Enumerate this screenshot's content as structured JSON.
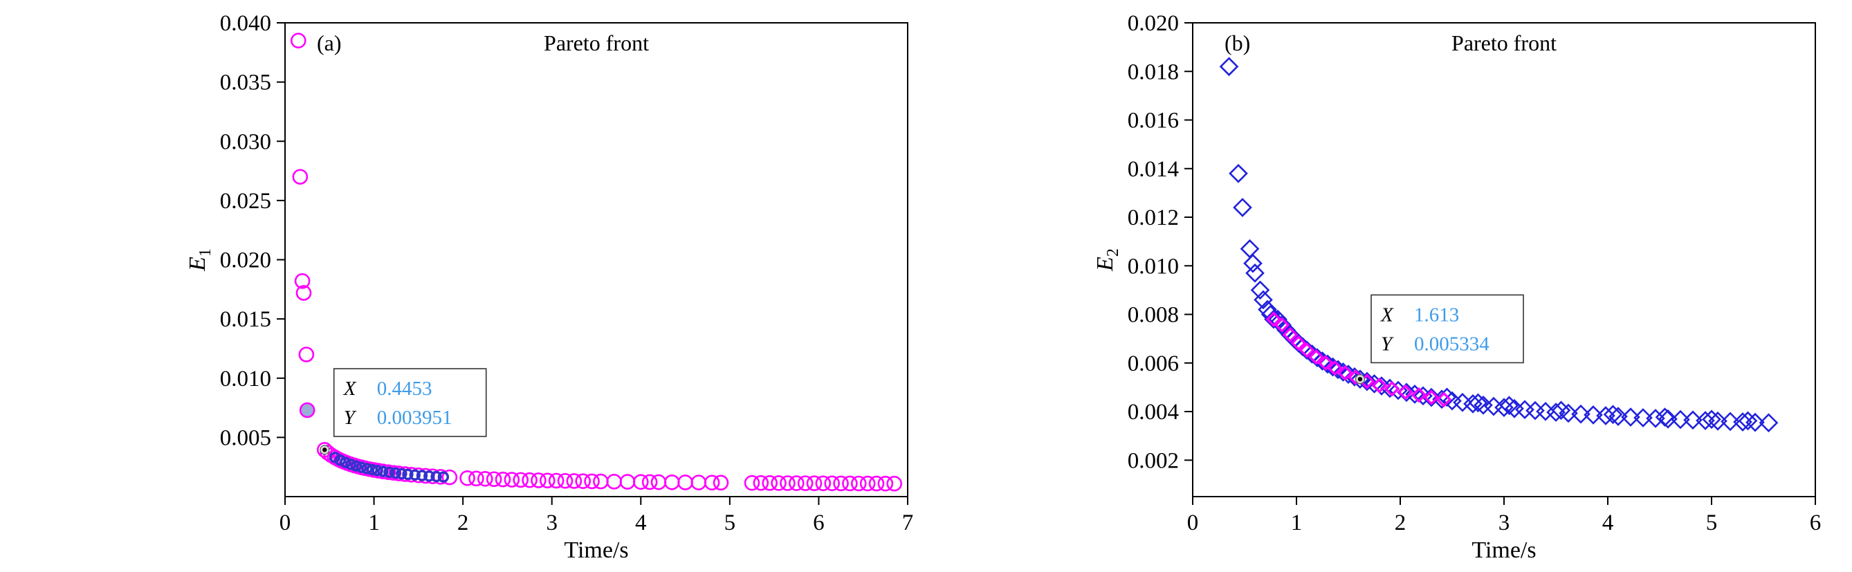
{
  "figure": {
    "background": "#ffffff",
    "frame_color": "#000000",
    "datatip_value_color": "#3D9BE9",
    "datatip_dot_fill": "#dcdcdc"
  },
  "chart_data": [
    {
      "type": "scatter",
      "panel_label": "(a)",
      "title": "Pareto front",
      "xlabel": "Time/s",
      "ylabel_main": "E",
      "ylabel_sub": "1",
      "xlim": [
        0,
        7
      ],
      "ylim": [
        0,
        0.04
      ],
      "grid": false,
      "xticks": [
        [
          0,
          "0"
        ],
        [
          1,
          "1"
        ],
        [
          2,
          "2"
        ],
        [
          3,
          "3"
        ],
        [
          4,
          "4"
        ],
        [
          5,
          "5"
        ],
        [
          6,
          "6"
        ],
        [
          7,
          "7"
        ]
      ],
      "yticks": [
        [
          0.005,
          "0.005"
        ],
        [
          0.01,
          "0.010"
        ],
        [
          0.015,
          "0.015"
        ],
        [
          0.02,
          "0.020"
        ],
        [
          0.025,
          "0.025"
        ],
        [
          0.03,
          "0.030"
        ],
        [
          0.035,
          "0.035"
        ],
        [
          0.04,
          "0.040"
        ]
      ],
      "series": [
        {
          "name": "pareto-points-E1",
          "marker": "circle",
          "color": "#FF00FF",
          "fill": "none",
          "size": 10,
          "stroke_width": 2.6,
          "points": [
            [
              0.15,
              0.0385
            ],
            [
              0.17,
              0.027
            ],
            [
              0.195,
              0.0182
            ],
            [
              0.21,
              0.0172
            ],
            [
              0.24,
              0.012
            ],
            [
              0.4453,
              0.003951
            ],
            [
              0.48,
              0.003713
            ],
            [
              0.52,
              0.003496
            ],
            [
              0.56,
              0.003311
            ],
            [
              0.6,
              0.00315
            ],
            [
              0.63,
              0.003043
            ],
            [
              0.66,
              0.002945
            ],
            [
              0.7,
              0.002829
            ],
            [
              0.74,
              0.002724
            ],
            [
              0.78,
              0.002631
            ],
            [
              0.82,
              0.002546
            ],
            [
              0.86,
              0.00247
            ],
            [
              0.9,
              0.0024
            ],
            [
              0.95,
              0.002321
            ],
            [
              1.0,
              0.00225
            ],
            [
              1.05,
              0.002186
            ],
            [
              1.1,
              0.002127
            ],
            [
              1.16,
              0.002064
            ],
            [
              1.22,
              0.002007
            ],
            [
              1.28,
              0.001955
            ],
            [
              1.35,
              0.0019
            ],
            [
              1.42,
              0.001851
            ],
            [
              1.5,
              0.0018
            ],
            [
              1.58,
              0.001754
            ],
            [
              1.66,
              0.001713
            ],
            [
              1.75,
              0.001671
            ],
            [
              1.85,
              0.00163
            ],
            [
              2.05,
              0.001559
            ],
            [
              2.15,
              0.001528
            ],
            [
              2.25,
              0.0015
            ],
            [
              2.35,
              0.001474
            ],
            [
              2.45,
              0.001451
            ],
            [
              2.55,
              0.001429
            ],
            [
              2.65,
              0.001409
            ],
            [
              2.75,
              0.001391
            ],
            [
              2.85,
              0.001374
            ],
            [
              2.95,
              0.001358
            ],
            [
              3.05,
              0.001343
            ],
            [
              3.15,
              0.001329
            ],
            [
              3.25,
              0.001315
            ],
            [
              3.35,
              0.001303
            ],
            [
              3.45,
              0.001291
            ],
            [
              3.55,
              0.00128
            ],
            [
              3.7,
              0.001265
            ],
            [
              3.85,
              0.001251
            ],
            [
              4.0,
              0.001238
            ],
            [
              4.1,
              0.001229
            ],
            [
              4.2,
              0.001221
            ],
            [
              4.35,
              0.00121
            ],
            [
              4.5,
              0.0012
            ],
            [
              4.65,
              0.00119
            ],
            [
              4.8,
              0.001181
            ],
            [
              4.9,
              0.001176
            ],
            [
              5.25,
              0.001157
            ],
            [
              5.35,
              0.001152
            ],
            [
              5.45,
              0.001148
            ],
            [
              5.55,
              0.001143
            ],
            [
              5.65,
              0.001139
            ],
            [
              5.75,
              0.001135
            ],
            [
              5.85,
              0.001131
            ],
            [
              5.95,
              0.001127
            ],
            [
              6.05,
              0.001123
            ],
            [
              6.15,
              0.00112
            ],
            [
              6.25,
              0.001116
            ],
            [
              6.35,
              0.001113
            ],
            [
              6.45,
              0.001109
            ],
            [
              6.55,
              0.001106
            ],
            [
              6.65,
              0.001103
            ],
            [
              6.75,
              0.0011
            ],
            [
              6.85,
              0.001097
            ]
          ]
        },
        {
          "name": "common-solutions-overlay",
          "marker": "circle",
          "color": "#3333CC",
          "fill": "none",
          "size": 6.5,
          "stroke_width": 3.4,
          "points": [
            [
              0.56,
              0.003311
            ],
            [
              0.62,
              0.003077
            ],
            [
              0.68,
              0.002885
            ],
            [
              0.74,
              0.002724
            ],
            [
              0.8,
              0.002588
            ],
            [
              0.86,
              0.00247
            ],
            [
              0.92,
              0.002367
            ],
            [
              0.98,
              0.002278
            ],
            [
              1.04,
              0.002198
            ],
            [
              1.1,
              0.002127
            ],
            [
              1.17,
              0.002054
            ],
            [
              1.24,
              0.001989
            ],
            [
              1.31,
              0.001931
            ],
            [
              1.38,
              0.001878
            ],
            [
              1.46,
              0.001825
            ],
            [
              1.54,
              0.001777
            ],
            [
              1.62,
              0.001733
            ],
            [
              1.7,
              0.001694
            ],
            [
              1.78,
              0.001658
            ]
          ]
        },
        {
          "name": "highlighted-filled-point",
          "marker": "circle",
          "color": "#FF00FF",
          "fill": "#9aaEd8",
          "size": 10,
          "stroke_width": 2.6,
          "points": [
            [
              0.25,
              0.0073
            ]
          ]
        }
      ],
      "annotation": {
        "labels": [
          "X",
          "Y"
        ],
        "values": [
          "0.4453",
          "0.003951"
        ],
        "point": [
          0.4453,
          0.003951
        ],
        "box_anchor": [
          0.55,
          0.0108
        ]
      }
    },
    {
      "type": "scatter",
      "panel_label": "(b)",
      "title": "Pareto front",
      "xlabel": "Time/s",
      "ylabel_main": "E",
      "ylabel_sub": "2",
      "xlim": [
        0,
        6
      ],
      "ylim": [
        0.0005,
        0.02
      ],
      "grid": false,
      "xticks": [
        [
          0,
          "0"
        ],
        [
          1,
          "1"
        ],
        [
          2,
          "2"
        ],
        [
          3,
          "3"
        ],
        [
          4,
          "4"
        ],
        [
          5,
          "5"
        ],
        [
          6,
          "6"
        ]
      ],
      "yticks": [
        [
          0.002,
          "0.002"
        ],
        [
          0.004,
          "0.004"
        ],
        [
          0.006,
          "0.006"
        ],
        [
          0.008,
          "0.008"
        ],
        [
          0.01,
          "0.010"
        ],
        [
          0.012,
          "0.012"
        ],
        [
          0.014,
          "0.014"
        ],
        [
          0.016,
          "0.016"
        ],
        [
          0.018,
          "0.018"
        ],
        [
          0.02,
          "0.020"
        ]
      ],
      "series": [
        {
          "name": "pareto-points-E2",
          "marker": "diamond",
          "color": "#2222DD",
          "fill": "none",
          "size": 12,
          "stroke_width": 2.6,
          "points": [
            [
              0.35,
              0.0182
            ],
            [
              0.44,
              0.0138
            ],
            [
              0.48,
              0.0124
            ],
            [
              0.55,
              0.0107
            ],
            [
              0.58,
              0.0101
            ],
            [
              0.6,
              0.0097
            ],
            [
              0.65,
              0.009
            ],
            [
              0.68,
              0.0086
            ],
            [
              0.72,
              0.0082
            ],
            [
              0.75,
              0.008
            ],
            [
              0.78,
              0.0078
            ],
            [
              0.82,
              0.0078
            ],
            [
              0.86,
              0.007567
            ],
            [
              0.9,
              0.007356
            ],
            [
              0.94,
              0.007162
            ],
            [
              0.98,
              0.006984
            ],
            [
              1.02,
              0.00682
            ],
            [
              1.06,
              0.006668
            ],
            [
              1.1,
              0.006527
            ],
            [
              1.15,
              0.006365
            ],
            [
              1.2,
              0.006217
            ],
            [
              1.25,
              0.00608
            ],
            [
              1.3,
              0.005954
            ],
            [
              1.35,
              0.005837
            ],
            [
              1.4,
              0.005729
            ],
            [
              1.45,
              0.005628
            ],
            [
              1.5,
              0.005533
            ],
            [
              1.56,
              0.005428
            ],
            [
              1.613,
              0.005334
            ],
            [
              1.68,
              0.00524
            ],
            [
              1.75,
              0.005143
            ],
            [
              1.82,
              0.005053
            ],
            [
              1.9,
              0.004958
            ],
            [
              1.98,
              0.004871
            ],
            [
              2.06,
              0.00479
            ],
            [
              2.14,
              0.004716
            ],
            [
              2.22,
              0.004647
            ],
            [
              2.3,
              0.004583
            ],
            [
              2.4,
              0.004508
            ],
            [
              2.45,
              0.00459
            ],
            [
              2.5,
              0.00444
            ],
            [
              2.6,
              0.004377
            ],
            [
              2.7,
              0.004319
            ],
            [
              2.75,
              0.00436
            ],
            [
              2.8,
              0.004264
            ],
            [
              2.9,
              0.004214
            ],
            [
              3.0,
              0.004167
            ],
            [
              3.05,
              0.00425
            ],
            [
              3.1,
              0.004123
            ],
            [
              3.2,
              0.004081
            ],
            [
              3.3,
              0.004042
            ],
            [
              3.4,
              0.004006
            ],
            [
              3.5,
              0.003971
            ],
            [
              3.55,
              0.00405
            ],
            [
              3.62,
              0.003933
            ],
            [
              3.74,
              0.003896
            ],
            [
              3.86,
              0.003862
            ],
            [
              3.98,
              0.00383
            ],
            [
              4.05,
              0.00388
            ],
            [
              4.1,
              0.0038
            ],
            [
              4.22,
              0.003772
            ],
            [
              4.34,
              0.003745
            ],
            [
              4.46,
              0.003719
            ],
            [
              4.55,
              0.00377
            ],
            [
              4.58,
              0.003695
            ],
            [
              4.7,
              0.003672
            ],
            [
              4.82,
              0.003651
            ],
            [
              4.94,
              0.00363
            ],
            [
              5.0,
              0.00368
            ],
            [
              5.06,
              0.00361
            ],
            [
              5.18,
              0.003592
            ],
            [
              5.3,
              0.003574
            ],
            [
              5.35,
              0.00362
            ],
            [
              5.42,
              0.003556
            ],
            [
              5.55,
              0.003539
            ]
          ]
        },
        {
          "name": "common-solutions-overlay",
          "marker": "diamond",
          "color": "#FF00FF",
          "fill": "none",
          "size": 9,
          "stroke_width": 3.2,
          "points": [
            [
              0.78,
              0.0078
            ],
            [
              0.86,
              0.007567
            ],
            [
              0.94,
              0.007162
            ],
            [
              1.02,
              0.00682
            ],
            [
              1.1,
              0.006527
            ],
            [
              1.19,
              0.006245
            ],
            [
              1.28,
              0.006003
            ],
            [
              1.37,
              0.005793
            ],
            [
              1.47,
              0.005589
            ],
            [
              1.57,
              0.005411
            ],
            [
              1.68,
              0.00524
            ],
            [
              1.8,
              0.005078
            ],
            [
              1.92,
              0.004935
            ],
            [
              2.05,
              0.0048
            ],
            [
              2.18,
              0.004681
            ],
            [
              2.3,
              0.004583
            ],
            [
              2.42,
              0.004494
            ]
          ]
        }
      ],
      "annotation": {
        "labels": [
          "X",
          "Y"
        ],
        "values": [
          "1.613",
          "0.005334"
        ],
        "point": [
          1.613,
          0.005334
        ],
        "box_anchor": [
          1.72,
          0.0088
        ]
      }
    }
  ]
}
